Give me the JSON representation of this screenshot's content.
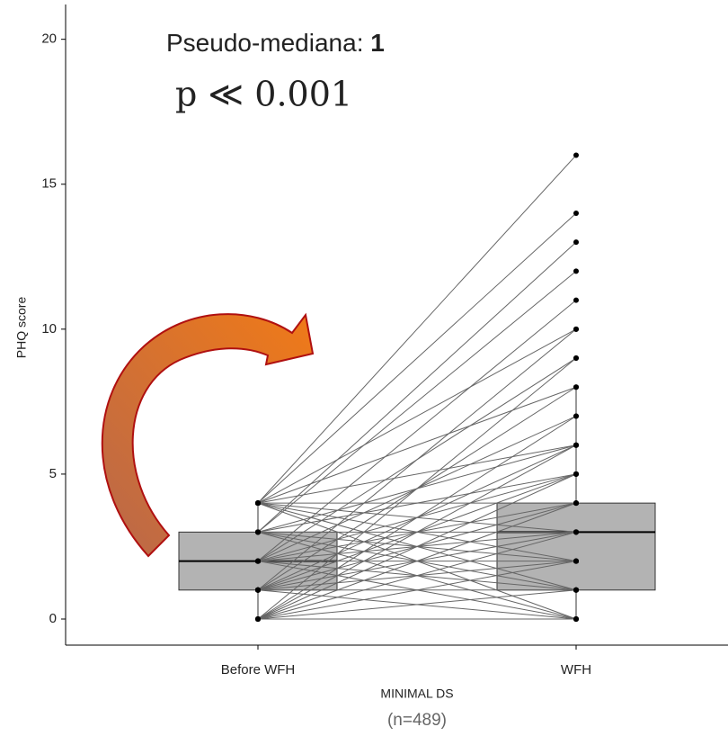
{
  "chart_data": {
    "type": "paired-box",
    "annotation_label": "Pseudo-mediana: ",
    "annotation_value": "1",
    "p_value": "p ≪ 0.001",
    "ylabel": "PHQ score",
    "xlabel": "MINIMAL DS",
    "note": "(n=489)",
    "categories": [
      "Before WFH",
      "WFH"
    ],
    "ylim": [
      -0.9,
      21.2
    ],
    "yticks": [
      0,
      5,
      10,
      15,
      20
    ],
    "boxes": [
      {
        "whisker_low": 0,
        "q1": 1,
        "median": 2,
        "q3": 3,
        "whisker_high": 4
      },
      {
        "whisker_low": 0,
        "q1": 1,
        "median": 3,
        "q3": 4,
        "whisker_high": 8
      }
    ],
    "pairs": {
      "before": [
        0,
        0,
        0,
        0,
        0,
        0,
        0,
        0,
        0,
        1,
        1,
        1,
        1,
        1,
        1,
        1,
        1,
        1,
        2,
        2,
        2,
        2,
        2,
        2,
        2,
        2,
        2,
        3,
        3,
        3,
        3,
        3,
        3,
        3,
        3,
        4,
        4,
        4,
        4,
        4,
        4,
        4,
        4,
        4,
        4
      ],
      "after": [
        0,
        1,
        2,
        3,
        4,
        5,
        6,
        7,
        9,
        0,
        1,
        2,
        3,
        4,
        5,
        6,
        8,
        10,
        0,
        1,
        2,
        3,
        4,
        5,
        7,
        9,
        11,
        0,
        1,
        2,
        3,
        5,
        6,
        12,
        13,
        0,
        1,
        2,
        3,
        4,
        6,
        8,
        10,
        14,
        16
      ]
    },
    "box_color": "#b3b3b3",
    "line_color": "#666666"
  }
}
